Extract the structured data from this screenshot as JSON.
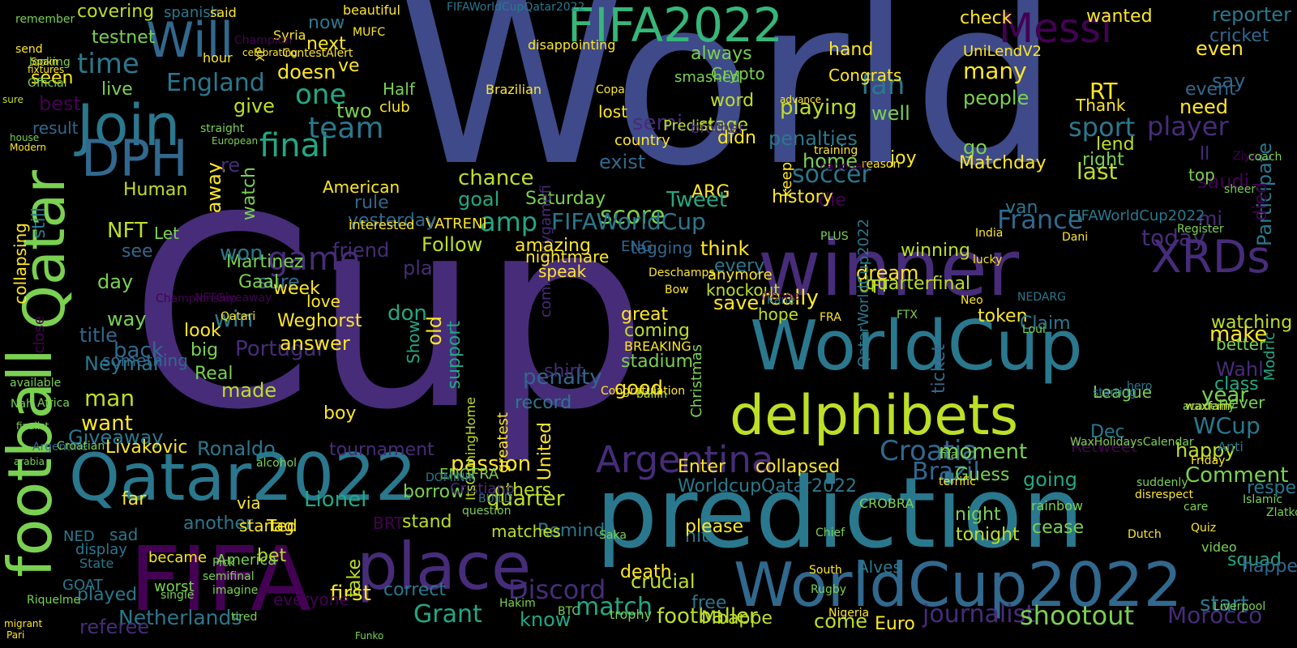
{
  "colors": {
    "background": "#000000",
    "palette": [
      "#3e4a89",
      "#472c7a",
      "#2a788e",
      "#22a884",
      "#7ad151",
      "#bddf26",
      "#fde725",
      "#440154",
      "#31688e",
      "#35b779"
    ]
  },
  "words": [
    "World",
    "Cup",
    "prediction",
    "winner",
    "WorldCup",
    "delphibets",
    "WorldCup2022",
    "Qatar2022",
    "FIFA",
    "place",
    "Join",
    "Will",
    "FIFA2022",
    "Messi",
    "DPH",
    "Qatar",
    "football",
    "XRDs",
    "Argentina",
    "Croatia",
    "England",
    "final",
    "time",
    "game",
    "score",
    "player",
    "France",
    "Brazil",
    "Neymar",
    "Netherlands",
    "Portugal",
    "Lionel",
    "Ronaldo",
    "Morocco",
    "team",
    "soccer",
    "penalties",
    "fan",
    "sport",
    "match",
    "journalist",
    "Grant",
    "shootout",
    "footballer",
    "Discord",
    "quarter",
    "passion",
    "Giveaway",
    "want",
    "man",
    "back",
    "day",
    "title",
    "played",
    "referee",
    "NFT",
    "amp",
    "FIFAWorldCup",
    "semi",
    "today",
    "Wahl",
    "WCup",
    "make",
    "start",
    "happy",
    "Comment",
    "win",
    "sure",
    "answer",
    "made",
    "tournament",
    "first",
    "know",
    "come",
    "crucial",
    "free",
    "penalty",
    "shirt",
    "support",
    "old",
    "Show",
    "don",
    "friend",
    "play",
    "rule",
    "Follow",
    "chance",
    "goal",
    "VATRENI",
    "testnet",
    "covering",
    "now",
    "next",
    "one",
    "two",
    "give",
    "best",
    "seen",
    "result",
    "live",
    "well",
    "many",
    "people",
    "playing",
    "home",
    "joy",
    "go",
    "Matchday",
    "right",
    "last",
    "Participate",
    "died",
    "say",
    "need",
    "event",
    "even",
    "wanted",
    "reporter",
    "cricket",
    "check",
    "hand",
    "Congrats",
    "always",
    "stage",
    "word",
    "didn",
    "ARG",
    "Tweet",
    "die",
    "history",
    "think",
    "every",
    "anymore",
    "save",
    "really",
    "dream",
    "quarterfinal",
    "token",
    "Claim",
    "ticket",
    "coming",
    "great",
    "stadium",
    "good",
    "exist",
    "lost",
    "country",
    "winning",
    "van",
    "going",
    "moment",
    "Guess",
    "night",
    "tonight",
    "cease",
    "Remind",
    "matches",
    "others",
    "borrow",
    "Martinez",
    "won",
    "Gaal",
    "week",
    "Weghorst",
    "look",
    "big",
    "Real",
    "boy",
    "see",
    "way",
    "Livakovic",
    "Let",
    "American",
    "watch",
    "away",
    "re",
    "doesn",
    "ve",
    "Half",
    "club",
    "Predict",
    "Crypto",
    "smashed",
    "brother",
    "keep",
    "UniLendV2",
    "RT",
    "Thank",
    "lend",
    "year",
    "never",
    "class",
    "better",
    "watching",
    "saudi",
    "top",
    "ll",
    "mi",
    "UFT",
    "knockout",
    "hope",
    "love",
    "Saturday",
    "communitygamefi",
    "amazing",
    "speak",
    "nightmare",
    "tagging",
    "ENG",
    "Dec",
    "Retweet",
    "League",
    "WorldcupQatar2022",
    "Enter",
    "collapsed",
    "hit",
    "please",
    "death",
    "BRT",
    "stand",
    "correct",
    "take",
    "bet",
    "another",
    "far",
    "via",
    "Tag",
    "started",
    "NED",
    "sad",
    "display",
    "State",
    "GOAT",
    "became",
    "America",
    "everyone",
    "worst",
    "still",
    "collapsing",
    "close",
    "Human",
    "available",
    "something",
    "FIFAWorldCup2022",
    "QatarWorldCup2022",
    "Alves",
    "Mbappe",
    "Euro",
    "Cristiano",
    "United",
    "greatest",
    "record",
    "BREAKING",
    "Christmas",
    "Modric",
    "squad",
    "happen",
    "respectful",
    "yesterday",
    "interested",
    "ENGFRA",
    "question",
    "Hakim",
    "trophy",
    "alcohol",
    "Nigeria",
    "Liverpool",
    "video",
    "Quiz",
    "spanish",
    "beautiful",
    "FIFAWorldCupQatar2022",
    "said",
    "remember",
    "hour",
    "Syria",
    "XP",
    "Champion",
    "Official",
    "Brazilian",
    "disappointing",
    "Copa",
    "MUFC",
    "ContestAlert",
    "send",
    "looking",
    "Spain",
    "WaxHolidaysCalendar",
    "rainbow",
    "suddenly",
    "NFTGiveaway",
    "Championship",
    "Qatari",
    "Argentine",
    "arabia",
    "Africa",
    "Nah",
    "finalist",
    "Riquelme",
    "Croatian",
    "semifinal",
    "tired",
    "imagine",
    "single",
    "BTC",
    "Funko",
    "Congratulation",
    "sure",
    "fixtures",
    "Pick",
    "ItsComingHome",
    "DOMINIK",
    "BUILD",
    "waxfam",
    "academy",
    "Friday",
    "terrific",
    "fifa",
    "CROBRA",
    "Anti",
    "care",
    "disrespect",
    "starting",
    "hero",
    "NEDARG",
    "Loui",
    "Kane",
    "iPhone",
    "FRA",
    "FTX",
    "India",
    "Dani",
    "Register",
    "Ziyech",
    "coach",
    "sheer",
    "Islamic",
    "Zlatko",
    "Dutch",
    "Saka",
    "Chief",
    "South",
    "Rugby",
    "Neo",
    "lucky",
    "ballin",
    "Bow",
    "Deschamps",
    "PLUS",
    "advance",
    "reason",
    "national",
    "training",
    "celebrating",
    "straight",
    "European",
    "Modern",
    "house",
    "migrant",
    "Pari"
  ]
}
